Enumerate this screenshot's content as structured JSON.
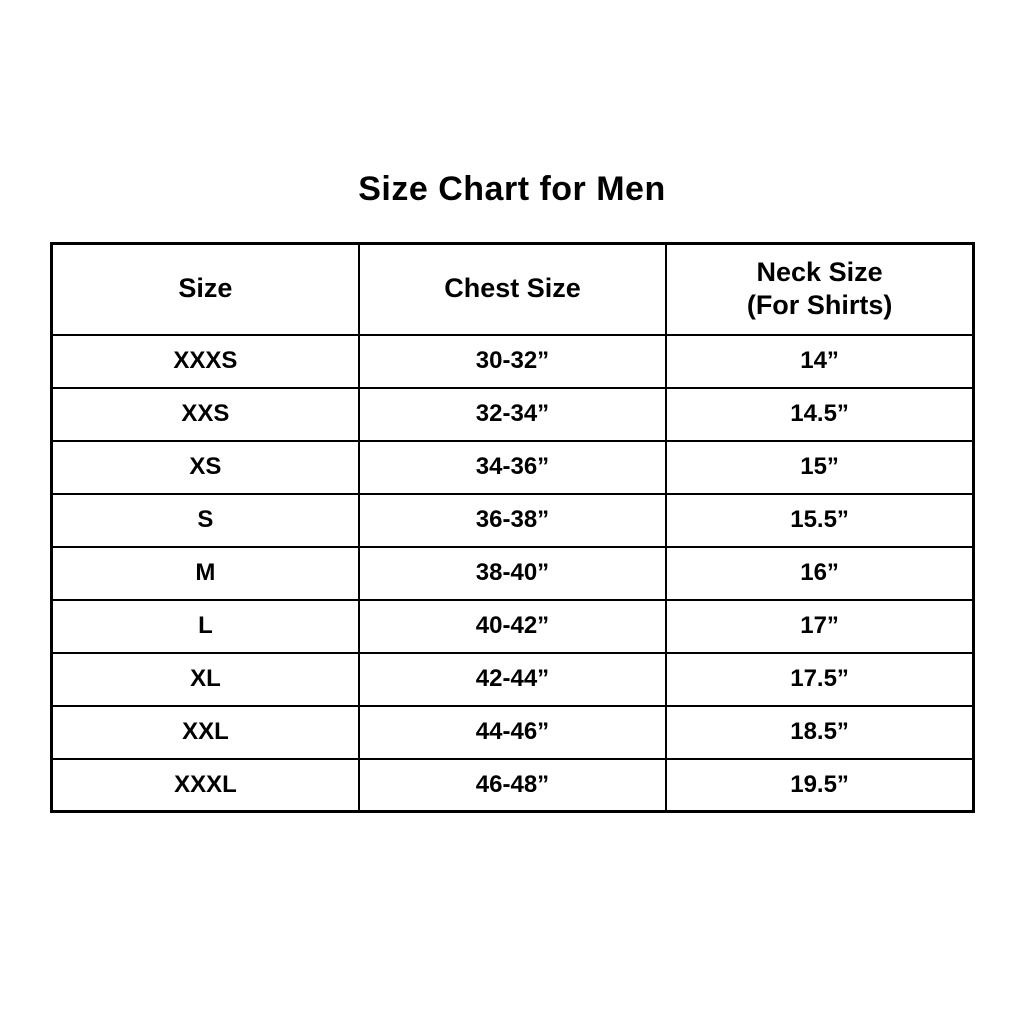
{
  "title": "Size Chart for Men",
  "table": {
    "headers": {
      "size": "Size",
      "chest": "Chest Size",
      "neck_line1": "Neck Size",
      "neck_line2": "(For Shirts)"
    },
    "rows": [
      {
        "size": "XXXS",
        "chest": "30-32”",
        "neck": "14”"
      },
      {
        "size": "XXS",
        "chest": "32-34”",
        "neck": "14.5”"
      },
      {
        "size": "XS",
        "chest": "34-36”",
        "neck": "15”"
      },
      {
        "size": "S",
        "chest": "36-38”",
        "neck": "15.5”"
      },
      {
        "size": "M",
        "chest": "38-40”",
        "neck": "16”"
      },
      {
        "size": "L",
        "chest": "40-42”",
        "neck": "17”"
      },
      {
        "size": "XL",
        "chest": "42-44”",
        "neck": "17.5”"
      },
      {
        "size": "XXL",
        "chest": "44-46”",
        "neck": "18.5”"
      },
      {
        "size": "XXXL",
        "chest": "46-48”",
        "neck": "19.5”"
      }
    ]
  },
  "chart_data": {
    "type": "table",
    "title": "Size Chart for Men",
    "columns": [
      "Size",
      "Chest Size",
      "Neck Size (For Shirts)"
    ],
    "rows": [
      [
        "XXXS",
        "30-32”",
        "14”"
      ],
      [
        "XXS",
        "32-34”",
        "14.5”"
      ],
      [
        "XS",
        "34-36”",
        "15”"
      ],
      [
        "S",
        "36-38”",
        "15.5”"
      ],
      [
        "M",
        "38-40”",
        "16”"
      ],
      [
        "L",
        "40-42”",
        "17”"
      ],
      [
        "XL",
        "42-44”",
        "17.5”"
      ],
      [
        "XXL",
        "44-46”",
        "18.5”"
      ],
      [
        "XXXL",
        "46-48”",
        "19.5”"
      ]
    ]
  },
  "colors": {
    "background": "#ffffff",
    "border": "#000000",
    "text": "#000000"
  }
}
